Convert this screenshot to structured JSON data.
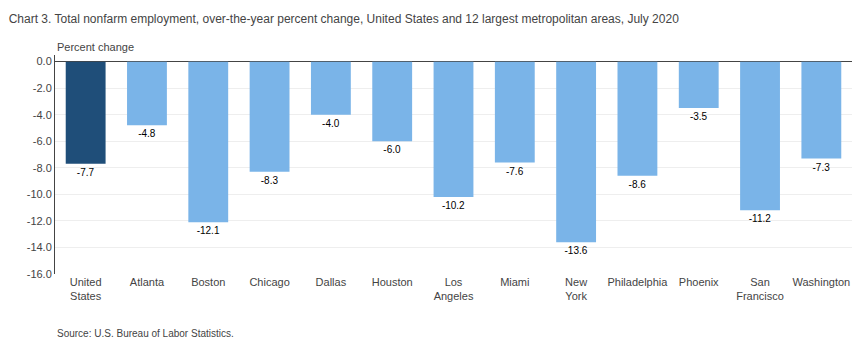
{
  "chart_data": {
    "type": "bar",
    "title": "Chart 3. Total nonfarm employment, over-the-year percent change, United States and 12 largest metropolitan areas, July 2020",
    "ylabel": "Percent change",
    "source": "Source: U.S. Bureau of Labor Statistics.",
    "categories": [
      "United\nStates",
      "Atlanta",
      "Boston",
      "Chicago",
      "Dallas",
      "Houston",
      "Los\nAngeles",
      "Miami",
      "New\nYork",
      "Philadelphia",
      "Phoenix",
      "San\nFrancisco",
      "Washington"
    ],
    "values": [
      -7.7,
      -4.8,
      -12.1,
      -8.3,
      -4.0,
      -6.0,
      -10.2,
      -7.6,
      -13.6,
      -8.6,
      -3.5,
      -11.2,
      -7.3
    ],
    "value_labels": [
      "-7.7",
      "-4.8",
      "-12.1",
      "-8.3",
      "-4.0",
      "-6.0",
      "-10.2",
      "-7.6",
      "-13.6",
      "-8.6",
      "-3.5",
      "-11.2",
      "-7.3"
    ],
    "data_labels": true,
    "colors": [
      "#1f4e79",
      "#7ab4e8",
      "#7ab4e8",
      "#7ab4e8",
      "#7ab4e8",
      "#7ab4e8",
      "#7ab4e8",
      "#7ab4e8",
      "#7ab4e8",
      "#7ab4e8",
      "#7ab4e8",
      "#7ab4e8",
      "#7ab4e8"
    ],
    "ylim": [
      -16.0,
      0.5
    ],
    "yticks": [
      {
        "value": 0,
        "label": "0.0"
      },
      {
        "value": -2,
        "label": "-2.0"
      },
      {
        "value": -4,
        "label": "-4.0"
      },
      {
        "value": -6,
        "label": "-6.0"
      },
      {
        "value": -8,
        "label": "-8.0"
      },
      {
        "value": -10,
        "label": "-10.0"
      },
      {
        "value": -12,
        "label": "-12.0"
      },
      {
        "value": -14,
        "label": "-14.0"
      },
      {
        "value": -16,
        "label": "-16.0"
      }
    ],
    "grid": true
  }
}
